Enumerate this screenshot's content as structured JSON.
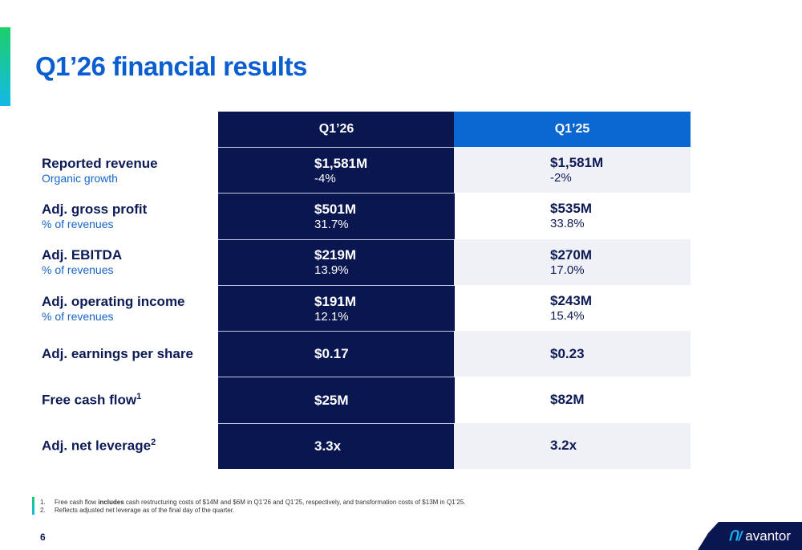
{
  "title": "Q1’26 financial results",
  "columns": [
    "Q1’26",
    "Q1’25"
  ],
  "rows": [
    {
      "label": "Reported revenue",
      "sub": "Organic growth",
      "q126": "$1,581M",
      "q126_sub": "-4%",
      "q125": "$1,581M",
      "q125_sub": "-2%"
    },
    {
      "label": "Adj. gross profit",
      "sub": "% of revenues",
      "q126": "$501M",
      "q126_sub": "31.7%",
      "q125": "$535M",
      "q125_sub": "33.8%"
    },
    {
      "label": "Adj. EBITDA",
      "sub": "% of revenues",
      "q126": "$219M",
      "q126_sub": "13.9%",
      "q125": "$270M",
      "q125_sub": "17.0%"
    },
    {
      "label": "Adj. operating income",
      "sub": "% of revenues",
      "q126": "$191M",
      "q126_sub": "12.1%",
      "q125": "$243M",
      "q125_sub": "15.4%"
    },
    {
      "label": "Adj. earnings per share",
      "q126": "$0.17",
      "q125": "$0.23"
    },
    {
      "label": "Free cash flow",
      "sup": "1",
      "q126": "$25M",
      "q125": "$82M"
    },
    {
      "label": "Adj. net leverage",
      "sup": "2",
      "q126": "3.3x",
      "q125": "3.2x"
    }
  ],
  "footnotes": [
    {
      "num": "1.",
      "pre": "Free cash flow ",
      "bold": "includes",
      "post": " cash restructuring costs of $14M and $6M in Q1’26 and Q1’25, respectively, and transformation costs of $13M in Q1’25."
    },
    {
      "num": "2.",
      "pre": "Reflects adjusted net leverage as of the final day of the quarter."
    }
  ],
  "page_number": "6",
  "logo": "avantor",
  "colors": {
    "navy": "#0a1650",
    "blue": "#0a66d1",
    "title": "#0a5ed0"
  }
}
